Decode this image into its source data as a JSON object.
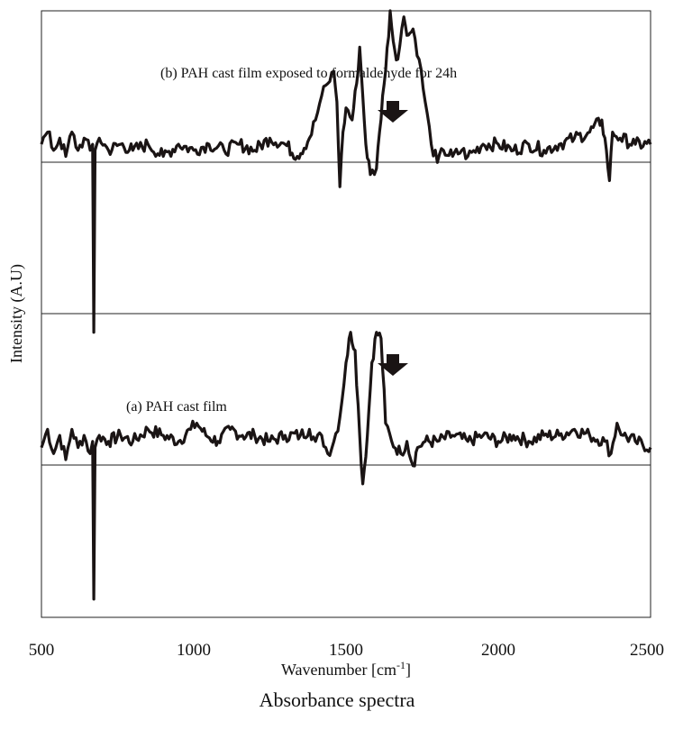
{
  "chart_data": {
    "type": "line",
    "title": "",
    "caption": "Absorbance spectra",
    "xlabel": "Wavenumber [cm",
    "xlabel_sup": "-1",
    "xlabel_end": "]",
    "ylabel": "Intensity (A.U)",
    "xlim": [
      500,
      2500
    ],
    "xticks": [
      "500",
      "1000",
      "1500",
      "2000",
      "2500"
    ],
    "grid": "horizontal lines",
    "series": [
      {
        "name": "(a) PAH cast film",
        "color": "#1a1414",
        "baseline": 0.29,
        "points": [
          [
            500,
            0.28
          ],
          [
            520,
            0.31
          ],
          [
            540,
            0.27
          ],
          [
            560,
            0.3
          ],
          [
            580,
            0.26
          ],
          [
            600,
            0.31
          ],
          [
            620,
            0.28
          ],
          [
            640,
            0.3
          ],
          [
            660,
            0.27
          ],
          [
            668,
            0.29
          ],
          [
            672,
            0.03
          ],
          [
            676,
            0.28
          ],
          [
            690,
            0.3
          ],
          [
            720,
            0.29
          ],
          [
            760,
            0.3
          ],
          [
            800,
            0.29
          ],
          [
            850,
            0.31
          ],
          [
            900,
            0.3
          ],
          [
            950,
            0.29
          ],
          [
            990,
            0.31
          ],
          [
            1010,
            0.32
          ],
          [
            1040,
            0.3
          ],
          [
            1080,
            0.29
          ],
          [
            1120,
            0.31
          ],
          [
            1160,
            0.3
          ],
          [
            1200,
            0.3
          ],
          [
            1250,
            0.29
          ],
          [
            1300,
            0.3
          ],
          [
            1350,
            0.3
          ],
          [
            1380,
            0.31
          ],
          [
            1400,
            0.29
          ],
          [
            1420,
            0.3
          ],
          [
            1440,
            0.27
          ],
          [
            1460,
            0.29
          ],
          [
            1480,
            0.33
          ],
          [
            1500,
            0.42
          ],
          [
            1515,
            0.47
          ],
          [
            1530,
            0.44
          ],
          [
            1545,
            0.3
          ],
          [
            1555,
            0.22
          ],
          [
            1570,
            0.3
          ],
          [
            1585,
            0.42
          ],
          [
            1600,
            0.47
          ],
          [
            1615,
            0.46
          ],
          [
            1630,
            0.32
          ],
          [
            1650,
            0.29
          ],
          [
            1680,
            0.27
          ],
          [
            1700,
            0.29
          ],
          [
            1720,
            0.25
          ],
          [
            1735,
            0.28
          ],
          [
            1760,
            0.29
          ],
          [
            1800,
            0.29
          ],
          [
            1850,
            0.3
          ],
          [
            1900,
            0.29
          ],
          [
            1950,
            0.3
          ],
          [
            2000,
            0.29
          ],
          [
            2050,
            0.3
          ],
          [
            2100,
            0.29
          ],
          [
            2150,
            0.3
          ],
          [
            2200,
            0.3
          ],
          [
            2250,
            0.31
          ],
          [
            2300,
            0.3
          ],
          [
            2350,
            0.29
          ],
          [
            2370,
            0.27
          ],
          [
            2390,
            0.32
          ],
          [
            2410,
            0.3
          ],
          [
            2450,
            0.29
          ],
          [
            2500,
            0.28
          ]
        ]
      },
      {
        "name": "(b) PAH cast film exposed to formaldehyde for 24h",
        "color": "#1a1414",
        "baseline": 0.78,
        "points": [
          [
            500,
            0.78
          ],
          [
            520,
            0.8
          ],
          [
            540,
            0.77
          ],
          [
            560,
            0.79
          ],
          [
            580,
            0.76
          ],
          [
            600,
            0.8
          ],
          [
            620,
            0.77
          ],
          [
            640,
            0.79
          ],
          [
            660,
            0.77
          ],
          [
            668,
            0.78
          ],
          [
            672,
            0.47
          ],
          [
            676,
            0.77
          ],
          [
            690,
            0.79
          ],
          [
            720,
            0.77
          ],
          [
            760,
            0.78
          ],
          [
            800,
            0.77
          ],
          [
            850,
            0.78
          ],
          [
            900,
            0.76
          ],
          [
            950,
            0.78
          ],
          [
            1000,
            0.77
          ],
          [
            1050,
            0.78
          ],
          [
            1100,
            0.77
          ],
          [
            1150,
            0.78
          ],
          [
            1200,
            0.77
          ],
          [
            1250,
            0.79
          ],
          [
            1300,
            0.78
          ],
          [
            1340,
            0.76
          ],
          [
            1380,
            0.79
          ],
          [
            1400,
            0.82
          ],
          [
            1420,
            0.86
          ],
          [
            1440,
            0.88
          ],
          [
            1460,
            0.9
          ],
          [
            1470,
            0.85
          ],
          [
            1480,
            0.71
          ],
          [
            1490,
            0.8
          ],
          [
            1500,
            0.84
          ],
          [
            1520,
            0.82
          ],
          [
            1535,
            0.88
          ],
          [
            1545,
            0.94
          ],
          [
            1555,
            0.86
          ],
          [
            1565,
            0.78
          ],
          [
            1580,
            0.73
          ],
          [
            1600,
            0.74
          ],
          [
            1610,
            0.8
          ],
          [
            1620,
            0.86
          ],
          [
            1630,
            0.9
          ],
          [
            1645,
            1.0
          ],
          [
            1655,
            0.95
          ],
          [
            1670,
            0.92
          ],
          [
            1690,
            0.99
          ],
          [
            1705,
            0.96
          ],
          [
            1720,
            0.97
          ],
          [
            1740,
            0.92
          ],
          [
            1760,
            0.85
          ],
          [
            1780,
            0.78
          ],
          [
            1800,
            0.75
          ],
          [
            1820,
            0.77
          ],
          [
            1850,
            0.76
          ],
          [
            1880,
            0.77
          ],
          [
            1900,
            0.76
          ],
          [
            1950,
            0.78
          ],
          [
            2000,
            0.78
          ],
          [
            2050,
            0.77
          ],
          [
            2100,
            0.78
          ],
          [
            2150,
            0.77
          ],
          [
            2200,
            0.78
          ],
          [
            2250,
            0.79
          ],
          [
            2300,
            0.8
          ],
          [
            2340,
            0.82
          ],
          [
            2355,
            0.77
          ],
          [
            2365,
            0.72
          ],
          [
            2375,
            0.8
          ],
          [
            2400,
            0.79
          ],
          [
            2450,
            0.78
          ],
          [
            2500,
            0.78
          ]
        ]
      }
    ],
    "arrows": [
      {
        "near_series": "(b) PAH cast film exposed to formaldehyde for 24h",
        "x": 1580
      },
      {
        "near_series": "(a) PAH cast film",
        "x": 1580
      }
    ]
  }
}
